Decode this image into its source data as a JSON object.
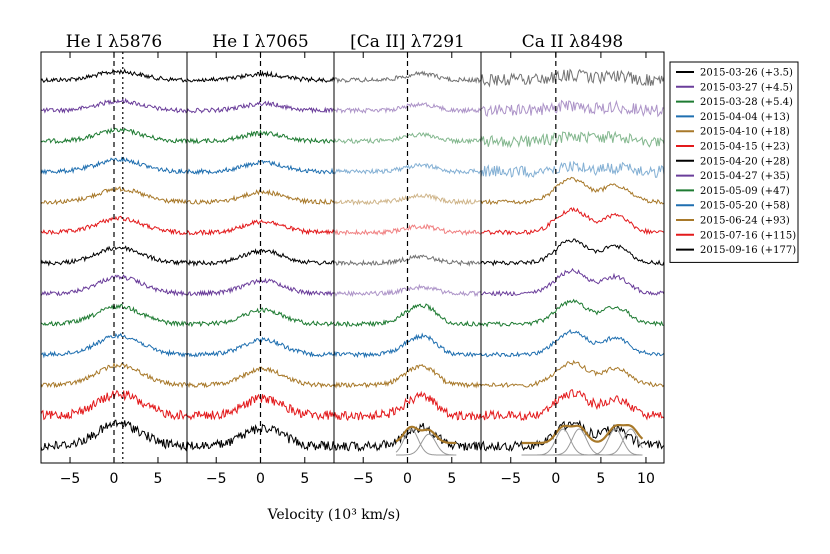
{
  "chart_data": {
    "type": "line",
    "title": "",
    "xlabel": "Velocity (10³ km/s)",
    "ylabel": "",
    "grid": false,
    "legend_placement": "right",
    "panels": [
      {
        "name": "He I",
        "line": "λ5876",
        "xlim": [
          -8.3,
          8.3
        ],
        "xticks": [
          -5,
          0,
          5
        ],
        "xtick_labels": [
          "−5",
          "0",
          "5"
        ],
        "dashed_at": [
          0,
          1
        ],
        "dotted": true,
        "fits": false
      },
      {
        "name": "He I",
        "line": "λ7065",
        "xlim": [
          -8.3,
          8.3
        ],
        "xticks": [
          -5,
          0,
          5
        ],
        "xtick_labels": [
          "−5",
          "0",
          "5"
        ],
        "dashed_at": [
          0
        ],
        "dotted": false,
        "fits": false
      },
      {
        "name": "[Ca II]",
        "line": "λ7291",
        "xlim": [
          -8.3,
          8.3
        ],
        "xticks": [
          -5,
          0,
          5
        ],
        "xtick_labels": [
          "−5",
          "0",
          "5"
        ],
        "dashed_at": [
          0
        ],
        "dotted": false,
        "fits": true,
        "fit_components": [
          0.4,
          2.4
        ]
      },
      {
        "name": "Ca II",
        "line": "λ8498",
        "xlim": [
          -8.3,
          12.0
        ],
        "xticks": [
          -5,
          0,
          5,
          10
        ],
        "xtick_labels": [
          "−5",
          "0",
          "5",
          "10"
        ],
        "dashed_at": [
          0
        ],
        "dotted": false,
        "fits": true,
        "fit_components": [
          0.8,
          2.6,
          6.6,
          8.3
        ]
      }
    ],
    "series": [
      {
        "name": "2015-03-26 (+3.5)",
        "color": "#000000"
      },
      {
        "name": "2015-03-27 (+4.5)",
        "color": "#6a3d9a"
      },
      {
        "name": "2015-03-28 (+5.4)",
        "color": "#1e7b32"
      },
      {
        "name": "2015-04-04 (+13)",
        "color": "#1f6fb0"
      },
      {
        "name": "2015-04-10 (+18)",
        "color": "#a8792a"
      },
      {
        "name": "2015-04-15 (+23)",
        "color": "#e31a1c"
      },
      {
        "name": "2015-04-20 (+28)",
        "color": "#000000"
      },
      {
        "name": "2015-04-27 (+35)",
        "color": "#6a3d9a"
      },
      {
        "name": "2015-05-09 (+47)",
        "color": "#1e7b32"
      },
      {
        "name": "2015-05-20 (+58)",
        "color": "#1f6fb0"
      },
      {
        "name": "2015-06-24 (+93)",
        "color": "#a8792a"
      },
      {
        "name": "2015-07-16 (+115)",
        "color": "#e31a1c"
      },
      {
        "name": "2015-09-16 (+177)",
        "color": "#000000"
      }
    ],
    "fit_color": "#a8792a",
    "component_color": "#999999"
  }
}
